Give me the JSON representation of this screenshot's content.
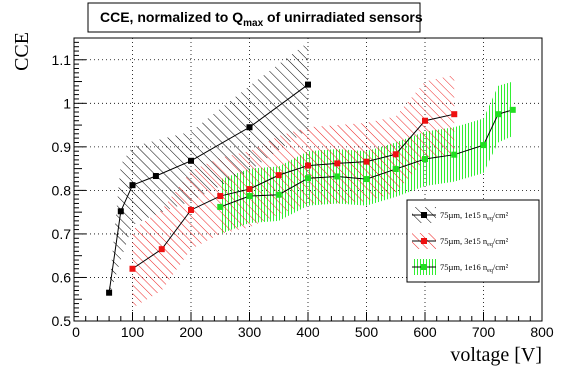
{
  "chart_data": {
    "type": "line",
    "title": "CCE, normalized to Q",
    "title_sub": "max",
    "title_suffix": " of unirradiated sensors",
    "xlabel": "voltage [V]",
    "ylabel": "CCE",
    "xlim": [
      0,
      800
    ],
    "ylim": [
      0.5,
      1.15
    ],
    "x_ticks": [
      0,
      100,
      200,
      300,
      400,
      500,
      600,
      700,
      800
    ],
    "y_ticks": [
      0.5,
      0.6,
      0.7,
      0.8,
      0.9,
      1,
      1.1
    ],
    "x_tick_labels": [
      "0",
      "100",
      "200",
      "300",
      "400",
      "500",
      "600",
      "700",
      "800"
    ],
    "y_tick_labels": [
      "0.5",
      "0.6",
      "0.7",
      "0.8",
      "0.9",
      "1",
      "1.1"
    ],
    "grid": true,
    "legend_position": "right-middle",
    "series": [
      {
        "name_main": "75µm, 1e15 n",
        "name_sub": "eq",
        "name_suffix": "/cm²",
        "color": "#000000",
        "marker_color": "#000000",
        "hatch": "black-diagonal",
        "x": [
          60,
          80,
          100,
          140,
          200,
          300,
          400
        ],
        "y": [
          0.565,
          0.752,
          0.812,
          0.833,
          0.868,
          0.945,
          1.043
        ],
        "band_low": [
          0.555,
          0.64,
          0.72,
          0.745,
          0.775,
          0.845,
          0.94
        ],
        "band_high": [
          0.575,
          0.86,
          0.9,
          0.915,
          0.935,
          1.04,
          1.14
        ]
      },
      {
        "name_main": "75µm, 3e15 n",
        "name_sub": "eq",
        "name_suffix": "/cm²",
        "color": "#000000",
        "marker_color": "#ee1111",
        "hatch": "red-diagonal",
        "x": [
          100,
          150,
          200,
          250,
          300,
          350,
          400,
          450,
          500,
          550,
          600,
          650
        ],
        "y": [
          0.62,
          0.665,
          0.755,
          0.787,
          0.803,
          0.835,
          0.857,
          0.862,
          0.866,
          0.883,
          0.96,
          0.975
        ],
        "band_low": [
          0.53,
          0.57,
          0.665,
          0.7,
          0.715,
          0.745,
          0.77,
          0.77,
          0.775,
          0.795,
          0.87,
          0.885
        ],
        "band_high": [
          0.71,
          0.755,
          0.845,
          0.875,
          0.89,
          0.925,
          0.945,
          0.95,
          0.955,
          0.97,
          1.05,
          1.065
        ]
      },
      {
        "name_main": "75µm, 1e16 n",
        "name_sub": "eq",
        "name_suffix": "/cm²",
        "color": "#000000",
        "marker_color": "#22dd22",
        "hatch": "green-vertical",
        "x": [
          250,
          300,
          350,
          400,
          450,
          500,
          550,
          600,
          650,
          700,
          725,
          750
        ],
        "y": [
          0.762,
          0.787,
          0.79,
          0.828,
          0.832,
          0.826,
          0.849,
          0.872,
          0.882,
          0.904,
          0.975,
          0.985
        ],
        "band_low": [
          0.7,
          0.725,
          0.73,
          0.765,
          0.77,
          0.765,
          0.785,
          0.81,
          0.82,
          0.84,
          0.91,
          0.925
        ],
        "band_high": [
          0.825,
          0.85,
          0.855,
          0.89,
          0.895,
          0.89,
          0.91,
          0.935,
          0.945,
          0.965,
          1.04,
          1.05
        ]
      }
    ]
  }
}
